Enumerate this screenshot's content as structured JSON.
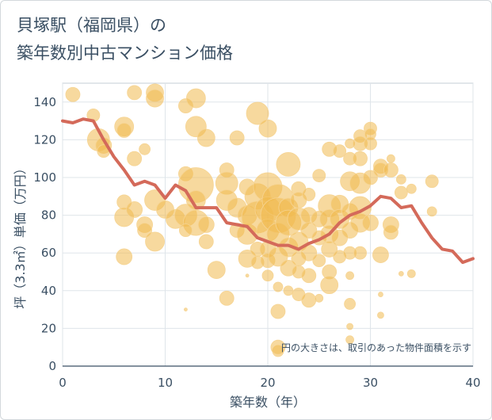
{
  "title_line1": "貝塚駅（福岡県）の",
  "title_line2": "築年数別中古マンション価格",
  "note": "円の大きさは、取引のあった物件面積を示す",
  "chart_data": {
    "type": "scatter",
    "xlabel": "築年数（年）",
    "ylabel": "坪（3.3㎡）単価（万円）",
    "xlim": [
      0,
      40
    ],
    "ylim": [
      0,
      150
    ],
    "xticks": [
      0,
      10,
      20,
      30,
      40
    ],
    "yticks": [
      0,
      20,
      40,
      60,
      80,
      100,
      120,
      140
    ],
    "grid": true,
    "colors": {
      "bubble": "#f0b94e",
      "line": "#d46a5a"
    },
    "line": {
      "x": [
        0,
        1,
        2,
        3,
        4,
        5,
        6,
        7,
        8,
        9,
        10,
        11,
        12,
        13,
        14,
        15,
        16,
        17,
        18,
        19,
        20,
        21,
        22,
        23,
        24,
        25,
        26,
        27,
        28,
        29,
        30,
        31,
        32,
        33,
        34,
        35,
        36,
        37,
        38,
        39,
        40
      ],
      "y": [
        130,
        129,
        131,
        130,
        120,
        111,
        104,
        96,
        98,
        96,
        89,
        96,
        93,
        84,
        84,
        84,
        76,
        75,
        74,
        68,
        66,
        64,
        64,
        62,
        65,
        67,
        70,
        76,
        80,
        82,
        85,
        90,
        89,
        84,
        85,
        76,
        68,
        62,
        61,
        55,
        57
      ]
    },
    "points": [
      {
        "x": 1,
        "y": 144,
        "s": 9
      },
      {
        "x": 3,
        "y": 133,
        "s": 8
      },
      {
        "x": 3.5,
        "y": 120,
        "s": 14
      },
      {
        "x": 4,
        "y": 117,
        "s": 10
      },
      {
        "x": 4,
        "y": 114,
        "s": 8
      },
      {
        "x": 6,
        "y": 127,
        "s": 12
      },
      {
        "x": 6,
        "y": 125,
        "s": 9
      },
      {
        "x": 7,
        "y": 145,
        "s": 9
      },
      {
        "x": 7,
        "y": 110,
        "s": 9
      },
      {
        "x": 8,
        "y": 115,
        "s": 7
      },
      {
        "x": 9,
        "y": 145,
        "s": 11
      },
      {
        "x": 9,
        "y": 142,
        "s": 11
      },
      {
        "x": 9,
        "y": 88,
        "s": 13
      },
      {
        "x": 9,
        "y": 66,
        "s": 12
      },
      {
        "x": 6,
        "y": 87,
        "s": 9
      },
      {
        "x": 6,
        "y": 79,
        "s": 12
      },
      {
        "x": 6,
        "y": 58,
        "s": 10
      },
      {
        "x": 7,
        "y": 83,
        "s": 10
      },
      {
        "x": 8,
        "y": 75,
        "s": 10
      },
      {
        "x": 8,
        "y": 72,
        "s": 9
      },
      {
        "x": 10,
        "y": 83,
        "s": 11
      },
      {
        "x": 11,
        "y": 78,
        "s": 12
      },
      {
        "x": 12,
        "y": 102,
        "s": 9
      },
      {
        "x": 12,
        "y": 80,
        "s": 14
      },
      {
        "x": 12,
        "y": 138,
        "s": 9
      },
      {
        "x": 13,
        "y": 142,
        "s": 12
      },
      {
        "x": 13,
        "y": 127,
        "s": 13
      },
      {
        "x": 14,
        "y": 121,
        "s": 11
      },
      {
        "x": 13,
        "y": 96,
        "s": 22
      },
      {
        "x": 13,
        "y": 88,
        "s": 12
      },
      {
        "x": 13,
        "y": 76,
        "s": 16
      },
      {
        "x": 14,
        "y": 66,
        "s": 9
      },
      {
        "x": 14,
        "y": 75,
        "s": 10
      },
      {
        "x": 12,
        "y": 72,
        "s": 8
      },
      {
        "x": 15,
        "y": 51,
        "s": 11
      },
      {
        "x": 12,
        "y": 30,
        "s": 2
      },
      {
        "x": 16,
        "y": 36,
        "s": 9
      },
      {
        "x": 16,
        "y": 104,
        "s": 9
      },
      {
        "x": 16,
        "y": 97,
        "s": 14
      },
      {
        "x": 16,
        "y": 88,
        "s": 13
      },
      {
        "x": 17,
        "y": 121,
        "s": 9
      },
      {
        "x": 17,
        "y": 84,
        "s": 12
      },
      {
        "x": 17,
        "y": 72,
        "s": 9
      },
      {
        "x": 18,
        "y": 95,
        "s": 10
      },
      {
        "x": 18,
        "y": 80,
        "s": 12
      },
      {
        "x": 18,
        "y": 70,
        "s": 13
      },
      {
        "x": 18,
        "y": 57,
        "s": 11
      },
      {
        "x": 18,
        "y": 48,
        "s": 2
      },
      {
        "x": 19,
        "y": 134,
        "s": 14
      },
      {
        "x": 19,
        "y": 90,
        "s": 16
      },
      {
        "x": 19,
        "y": 79,
        "s": 20
      },
      {
        "x": 19,
        "y": 62,
        "s": 9
      },
      {
        "x": 19,
        "y": 55,
        "s": 8
      },
      {
        "x": 20,
        "y": 126,
        "s": 11
      },
      {
        "x": 20,
        "y": 95,
        "s": 18
      },
      {
        "x": 20,
        "y": 83,
        "s": 16
      },
      {
        "x": 20,
        "y": 72,
        "s": 14
      },
      {
        "x": 20,
        "y": 62,
        "s": 10
      },
      {
        "x": 20,
        "y": 56,
        "s": 9
      },
      {
        "x": 20,
        "y": 48,
        "s": 7
      },
      {
        "x": 21,
        "y": 88,
        "s": 20
      },
      {
        "x": 21,
        "y": 80,
        "s": 22
      },
      {
        "x": 21,
        "y": 70,
        "s": 14
      },
      {
        "x": 21,
        "y": 58,
        "s": 12
      },
      {
        "x": 21,
        "y": 42,
        "s": 6
      },
      {
        "x": 21,
        "y": 29,
        "s": 9
      },
      {
        "x": 21,
        "y": 8,
        "s": 7
      },
      {
        "x": 21,
        "y": 10,
        "s": 9
      },
      {
        "x": 22,
        "y": 107,
        "s": 15
      },
      {
        "x": 22,
        "y": 84,
        "s": 12
      },
      {
        "x": 22,
        "y": 76,
        "s": 16
      },
      {
        "x": 22,
        "y": 63,
        "s": 12
      },
      {
        "x": 22,
        "y": 52,
        "s": 10
      },
      {
        "x": 22,
        "y": 40,
        "s": 6
      },
      {
        "x": 23,
        "y": 94,
        "s": 9
      },
      {
        "x": 23,
        "y": 88,
        "s": 10
      },
      {
        "x": 23,
        "y": 78,
        "s": 14
      },
      {
        "x": 23,
        "y": 66,
        "s": 12
      },
      {
        "x": 23,
        "y": 57,
        "s": 9
      },
      {
        "x": 23,
        "y": 50,
        "s": 8
      },
      {
        "x": 23,
        "y": 38,
        "s": 8
      },
      {
        "x": 24,
        "y": 91,
        "s": 8
      },
      {
        "x": 24,
        "y": 80,
        "s": 10
      },
      {
        "x": 24,
        "y": 72,
        "s": 10
      },
      {
        "x": 24,
        "y": 60,
        "s": 10
      },
      {
        "x": 24,
        "y": 48,
        "s": 9
      },
      {
        "x": 24,
        "y": 35,
        "s": 9
      },
      {
        "x": 25,
        "y": 101,
        "s": 8
      },
      {
        "x": 25,
        "y": 78,
        "s": 10
      },
      {
        "x": 25,
        "y": 68,
        "s": 9
      },
      {
        "x": 25,
        "y": 56,
        "s": 8
      },
      {
        "x": 25,
        "y": 36,
        "s": 5
      },
      {
        "x": 26,
        "y": 115,
        "s": 9
      },
      {
        "x": 26,
        "y": 85,
        "s": 14
      },
      {
        "x": 26,
        "y": 78,
        "s": 12
      },
      {
        "x": 26,
        "y": 70,
        "s": 11
      },
      {
        "x": 26,
        "y": 62,
        "s": 10
      },
      {
        "x": 26,
        "y": 50,
        "s": 9
      },
      {
        "x": 26,
        "y": 43,
        "s": 11
      },
      {
        "x": 27,
        "y": 114,
        "s": 8
      },
      {
        "x": 27,
        "y": 86,
        "s": 11
      },
      {
        "x": 27,
        "y": 78,
        "s": 12
      },
      {
        "x": 27,
        "y": 68,
        "s": 10
      },
      {
        "x": 27,
        "y": 58,
        "s": 8
      },
      {
        "x": 28,
        "y": 118,
        "s": 6
      },
      {
        "x": 28,
        "y": 110,
        "s": 8
      },
      {
        "x": 28,
        "y": 98,
        "s": 12
      },
      {
        "x": 28,
        "y": 82,
        "s": 10
      },
      {
        "x": 28,
        "y": 72,
        "s": 10
      },
      {
        "x": 28,
        "y": 60,
        "s": 8
      },
      {
        "x": 28,
        "y": 48,
        "s": 5
      },
      {
        "x": 28,
        "y": 33,
        "s": 7
      },
      {
        "x": 28,
        "y": 21,
        "s": 4
      },
      {
        "x": 29,
        "y": 122,
        "s": 8
      },
      {
        "x": 29,
        "y": 118,
        "s": 9
      },
      {
        "x": 29,
        "y": 110,
        "s": 9
      },
      {
        "x": 29,
        "y": 97,
        "s": 13
      },
      {
        "x": 29,
        "y": 84,
        "s": 14
      },
      {
        "x": 29,
        "y": 76,
        "s": 12
      },
      {
        "x": 29,
        "y": 60,
        "s": 8
      },
      {
        "x": 30,
        "y": 126,
        "s": 8
      },
      {
        "x": 30,
        "y": 123,
        "s": 7
      },
      {
        "x": 30,
        "y": 118,
        "s": 8
      },
      {
        "x": 30,
        "y": 100,
        "s": 9
      },
      {
        "x": 30,
        "y": 76,
        "s": 10
      },
      {
        "x": 31,
        "y": 106,
        "s": 9
      },
      {
        "x": 31,
        "y": 104,
        "s": 9
      },
      {
        "x": 31,
        "y": 59,
        "s": 10
      },
      {
        "x": 31,
        "y": 38,
        "s": 3
      },
      {
        "x": 31,
        "y": 27,
        "s": 4
      },
      {
        "x": 32,
        "y": 110,
        "s": 5
      },
      {
        "x": 32,
        "y": 104,
        "s": 9
      },
      {
        "x": 32,
        "y": 75,
        "s": 10
      },
      {
        "x": 32,
        "y": 71,
        "s": 9
      },
      {
        "x": 33,
        "y": 99,
        "s": 6
      },
      {
        "x": 33,
        "y": 92,
        "s": 8
      },
      {
        "x": 33,
        "y": 49,
        "s": 3
      },
      {
        "x": 34,
        "y": 94,
        "s": 6
      },
      {
        "x": 34,
        "y": 49,
        "s": 5
      },
      {
        "x": 36,
        "y": 98,
        "s": 8
      },
      {
        "x": 36,
        "y": 82,
        "s": 6
      },
      {
        "x": 28,
        "y": 14,
        "s": 5
      }
    ]
  }
}
